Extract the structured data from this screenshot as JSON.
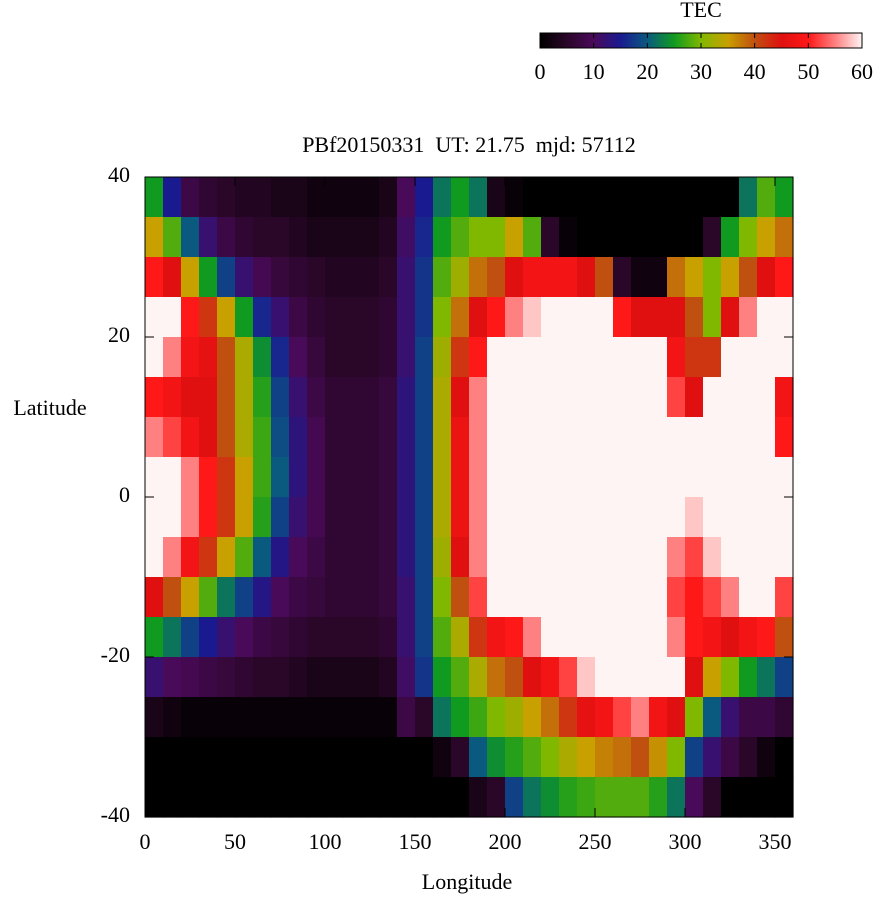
{
  "chart_data": {
    "type": "heatmap",
    "title": "PBf20150331  UT: 21.75  mjd: 57112",
    "xlabel": "Longitude",
    "ylabel": "Latitude",
    "colorbar_label": "TEC",
    "xlim": [
      0,
      360
    ],
    "xticks": [
      0,
      50,
      100,
      150,
      200,
      250,
      300,
      350
    ],
    "ylim": [
      -40,
      40
    ],
    "yticks": [
      -40,
      -20,
      0,
      20,
      40
    ],
    "zlim": [
      0,
      60
    ],
    "zticks": [
      0,
      10,
      20,
      30,
      40,
      50,
      60
    ],
    "colormap": [
      "#000000",
      "#2a0628",
      "#4a0a5a",
      "#1a1a90",
      "#0a5a80",
      "#109a20",
      "#80b800",
      "#c8a000",
      "#c05010",
      "#e01010",
      "#ff1818",
      "#ff8080",
      "#fff4f4"
    ],
    "x": [
      5,
      15,
      25,
      35,
      45,
      55,
      65,
      75,
      85,
      95,
      105,
      115,
      125,
      135,
      145,
      155,
      165,
      175,
      185,
      195,
      205,
      215,
      225,
      235,
      245,
      255,
      265,
      275,
      285,
      295,
      305,
      315,
      325,
      335,
      345,
      355
    ],
    "y": [
      37.5,
      32.5,
      27.5,
      22.5,
      17.5,
      12.5,
      7.5,
      2.5,
      -2.5,
      -7.5,
      -12.5,
      -17.5,
      -22.5,
      -27.5,
      -32.5,
      -37.5
    ],
    "z": [
      [
        25,
        35,
        50,
        60,
        60,
        50,
        55,
        60,
        60,
        60,
        45,
        25,
        12,
        3,
        0,
        0
      ],
      [
        15,
        28,
        45,
        60,
        55,
        48,
        52,
        60,
        60,
        55,
        40,
        22,
        10,
        2,
        0,
        0
      ],
      [
        8,
        20,
        35,
        50,
        48,
        45,
        48,
        55,
        55,
        48,
        35,
        18,
        9,
        1,
        0,
        0
      ],
      [
        6,
        12,
        25,
        42,
        46,
        45,
        45,
        50,
        50,
        42,
        28,
        15,
        8,
        1,
        0,
        0
      ],
      [
        5,
        8,
        18,
        35,
        40,
        40,
        40,
        42,
        42,
        35,
        22,
        12,
        7,
        1,
        0,
        0
      ],
      [
        4,
        6,
        12,
        25,
        33,
        33,
        33,
        35,
        35,
        28,
        18,
        10,
        6,
        1,
        0,
        0
      ],
      [
        4,
        5,
        9,
        16,
        24,
        26,
        27,
        27,
        26,
        20,
        14,
        8,
        5,
        1,
        0,
        0
      ],
      [
        3,
        5,
        7,
        12,
        16,
        18,
        19,
        20,
        18,
        14,
        10,
        7,
        5,
        1,
        0,
        0
      ],
      [
        3,
        4,
        6,
        8,
        10,
        12,
        13,
        13,
        12,
        10,
        8,
        6,
        4,
        1,
        0,
        0
      ],
      [
        2,
        3,
        5,
        6,
        7,
        8,
        9,
        9,
        9,
        8,
        7,
        5,
        3,
        1,
        0,
        0
      ],
      [
        2,
        3,
        4,
        5,
        5,
        6,
        6,
        6,
        6,
        6,
        6,
        5,
        3,
        1,
        0,
        0
      ],
      [
        2,
        3,
        4,
        5,
        5,
        6,
        6,
        6,
        6,
        6,
        6,
        5,
        3,
        1,
        0,
        0
      ],
      [
        2,
        3,
        4,
        5,
        5,
        6,
        6,
        6,
        6,
        6,
        6,
        5,
        3,
        1,
        0,
        0
      ],
      [
        3,
        4,
        5,
        6,
        6,
        7,
        7,
        7,
        7,
        7,
        7,
        6,
        4,
        1,
        0,
        0
      ],
      [
        10,
        11,
        12,
        12,
        12,
        13,
        13,
        13,
        13,
        13,
        12,
        12,
        11,
        8,
        0,
        0
      ],
      [
        15,
        16,
        17,
        17,
        18,
        18,
        18,
        18,
        18,
        18,
        18,
        18,
        17,
        5,
        0,
        0
      ],
      [
        22,
        25,
        28,
        30,
        32,
        33,
        33,
        33,
        33,
        32,
        30,
        28,
        25,
        22,
        2,
        0
      ],
      [
        25,
        28,
        32,
        38,
        42,
        45,
        47,
        47,
        47,
        45,
        40,
        33,
        28,
        25,
        5,
        0
      ],
      [
        22,
        30,
        38,
        45,
        50,
        55,
        55,
        55,
        55,
        55,
        52,
        42,
        33,
        27,
        20,
        3
      ],
      [
        3,
        30,
        40,
        50,
        60,
        60,
        60,
        60,
        60,
        60,
        60,
        48,
        38,
        30,
        24,
        5
      ],
      [
        1,
        35,
        45,
        55,
        60,
        60,
        60,
        60,
        60,
        60,
        60,
        50,
        40,
        32,
        26,
        18
      ],
      [
        0,
        28,
        48,
        58,
        60,
        60,
        60,
        60,
        60,
        60,
        60,
        55,
        45,
        35,
        28,
        22
      ],
      [
        0,
        5,
        48,
        60,
        60,
        60,
        60,
        60,
        60,
        60,
        60,
        60,
        48,
        38,
        30,
        24
      ],
      [
        0,
        1,
        48,
        60,
        60,
        60,
        60,
        60,
        60,
        60,
        60,
        60,
        52,
        42,
        33,
        26
      ],
      [
        0,
        0,
        45,
        60,
        60,
        60,
        60,
        60,
        60,
        60,
        60,
        60,
        58,
        46,
        35,
        27
      ],
      [
        0,
        0,
        40,
        60,
        60,
        60,
        60,
        60,
        60,
        60,
        60,
        60,
        60,
        48,
        37,
        28
      ],
      [
        0,
        0,
        5,
        50,
        60,
        60,
        60,
        60,
        60,
        60,
        60,
        60,
        60,
        52,
        38,
        28
      ],
      [
        0,
        0,
        2,
        45,
        60,
        60,
        60,
        60,
        60,
        60,
        60,
        60,
        60,
        55,
        40,
        28
      ],
      [
        0,
        0,
        2,
        45,
        60,
        60,
        60,
        60,
        60,
        60,
        60,
        60,
        60,
        48,
        36,
        26
      ],
      [
        0,
        0,
        38,
        45,
        48,
        52,
        60,
        60,
        60,
        55,
        52,
        55,
        60,
        45,
        30,
        22
      ],
      [
        0,
        0,
        35,
        40,
        42,
        45,
        60,
        60,
        58,
        52,
        50,
        50,
        45,
        30,
        18,
        10
      ],
      [
        0,
        5,
        30,
        30,
        42,
        60,
        60,
        60,
        60,
        58,
        52,
        48,
        35,
        20,
        12,
        5
      ],
      [
        0,
        25,
        35,
        45,
        60,
        60,
        60,
        60,
        60,
        60,
        55,
        45,
        30,
        12,
        8,
        0
      ],
      [
        22,
        30,
        40,
        55,
        60,
        60,
        60,
        60,
        60,
        60,
        60,
        48,
        25,
        8,
        5,
        0
      ],
      [
        28,
        35,
        45,
        60,
        60,
        60,
        60,
        60,
        60,
        60,
        60,
        50,
        22,
        8,
        2,
        0
      ],
      [
        25,
        38,
        50,
        60,
        60,
        48,
        50,
        60,
        60,
        60,
        52,
        40,
        18,
        6,
        0,
        0
      ]
    ]
  }
}
